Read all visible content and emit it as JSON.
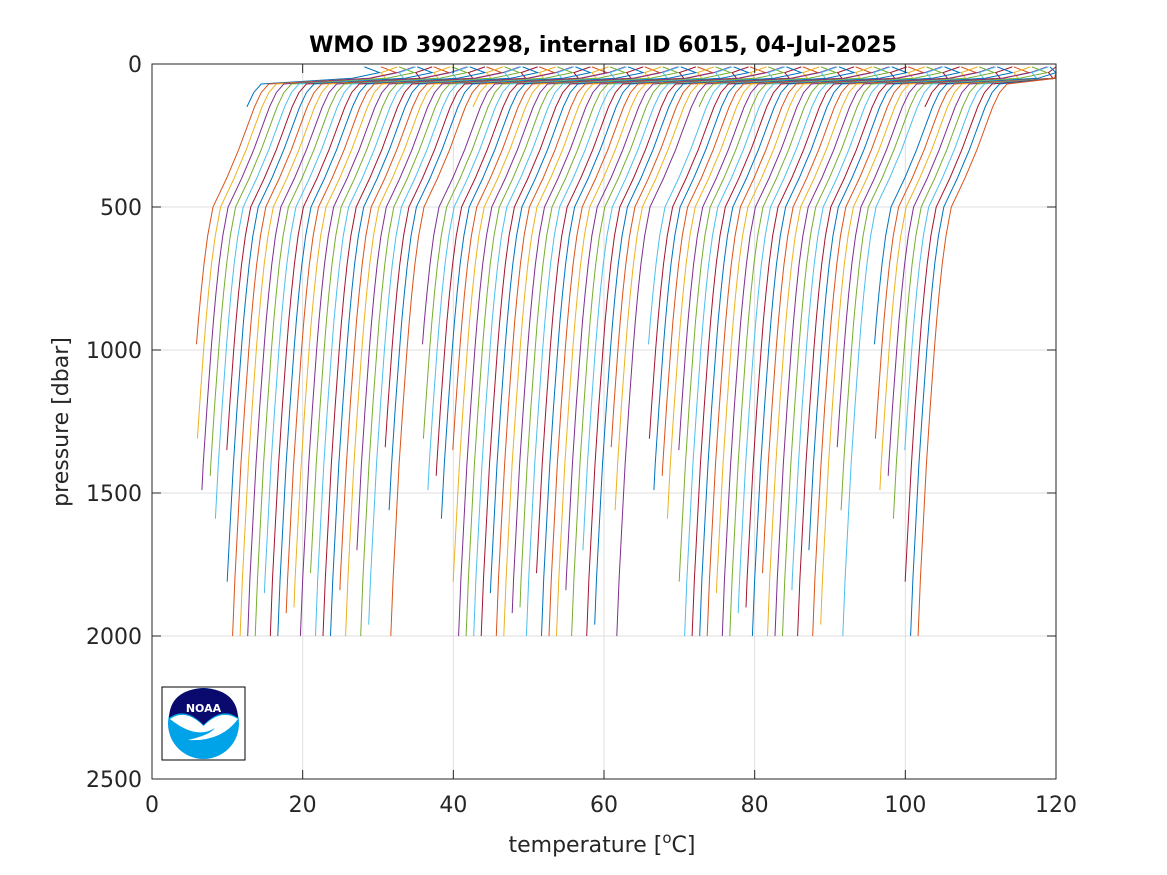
{
  "chart_data": {
    "type": "line",
    "title": "WMO ID 3902298, internal ID 6015, 04-Jul-2025",
    "xlabel": "temperature [",
    "xlabel_superscript": "o",
    "xlabel_suffix": "C]",
    "ylabel": "pressure [dbar]",
    "xlim": [
      0,
      120
    ],
    "ylim": [
      0,
      2500
    ],
    "y_reversed": true,
    "x_ticks": [
      "0",
      "20",
      "40",
      "60",
      "80",
      "100",
      "120"
    ],
    "y_ticks": [
      "0",
      "500",
      "1000",
      "1500",
      "2000",
      "2500"
    ],
    "grid": true,
    "legend": "none",
    "series_colors": [
      "#0072bd",
      "#d95319",
      "#edb120",
      "#7e2f8e",
      "#77ac30",
      "#4dbeee",
      "#a2142f"
    ],
    "profile_count": 100,
    "profile_offset_step_degC": 1.0,
    "base_profile": {
      "pressure": [
        10,
        30,
        50,
        70,
        100,
        150,
        200,
        250,
        300,
        350,
        400,
        450,
        500,
        600,
        700,
        800,
        900,
        1000,
        1200,
        1400,
        1600,
        1800,
        2000
      ],
      "temperature": [
        28.2,
        27.8,
        26.0,
        14.5,
        13.5,
        12.6,
        11.9,
        11.2,
        10.5,
        9.7,
        8.9,
        8.0,
        7.1,
        6.4,
        5.9,
        5.5,
        5.15,
        4.85,
        4.3,
        3.8,
        3.4,
        3.0,
        2.7
      ]
    },
    "first_profile_offset_degC": 0.0,
    "profile_max_depth": [
      150,
      980,
      1310,
      1490,
      1440,
      1590,
      1350,
      1810,
      2010,
      2010,
      2010,
      2010,
      1850,
      2010,
      2010,
      1920,
      1900,
      2010,
      1780,
      2010,
      2010,
      2010,
      1840,
      2010,
      1700,
      2010,
      1960,
      1340,
      1560,
      2010
    ],
    "logo": {
      "text": "NOAA",
      "colors": {
        "ring": "#0a0a6e",
        "circle": "#00a2e8",
        "bird": "#ffffff"
      }
    }
  }
}
